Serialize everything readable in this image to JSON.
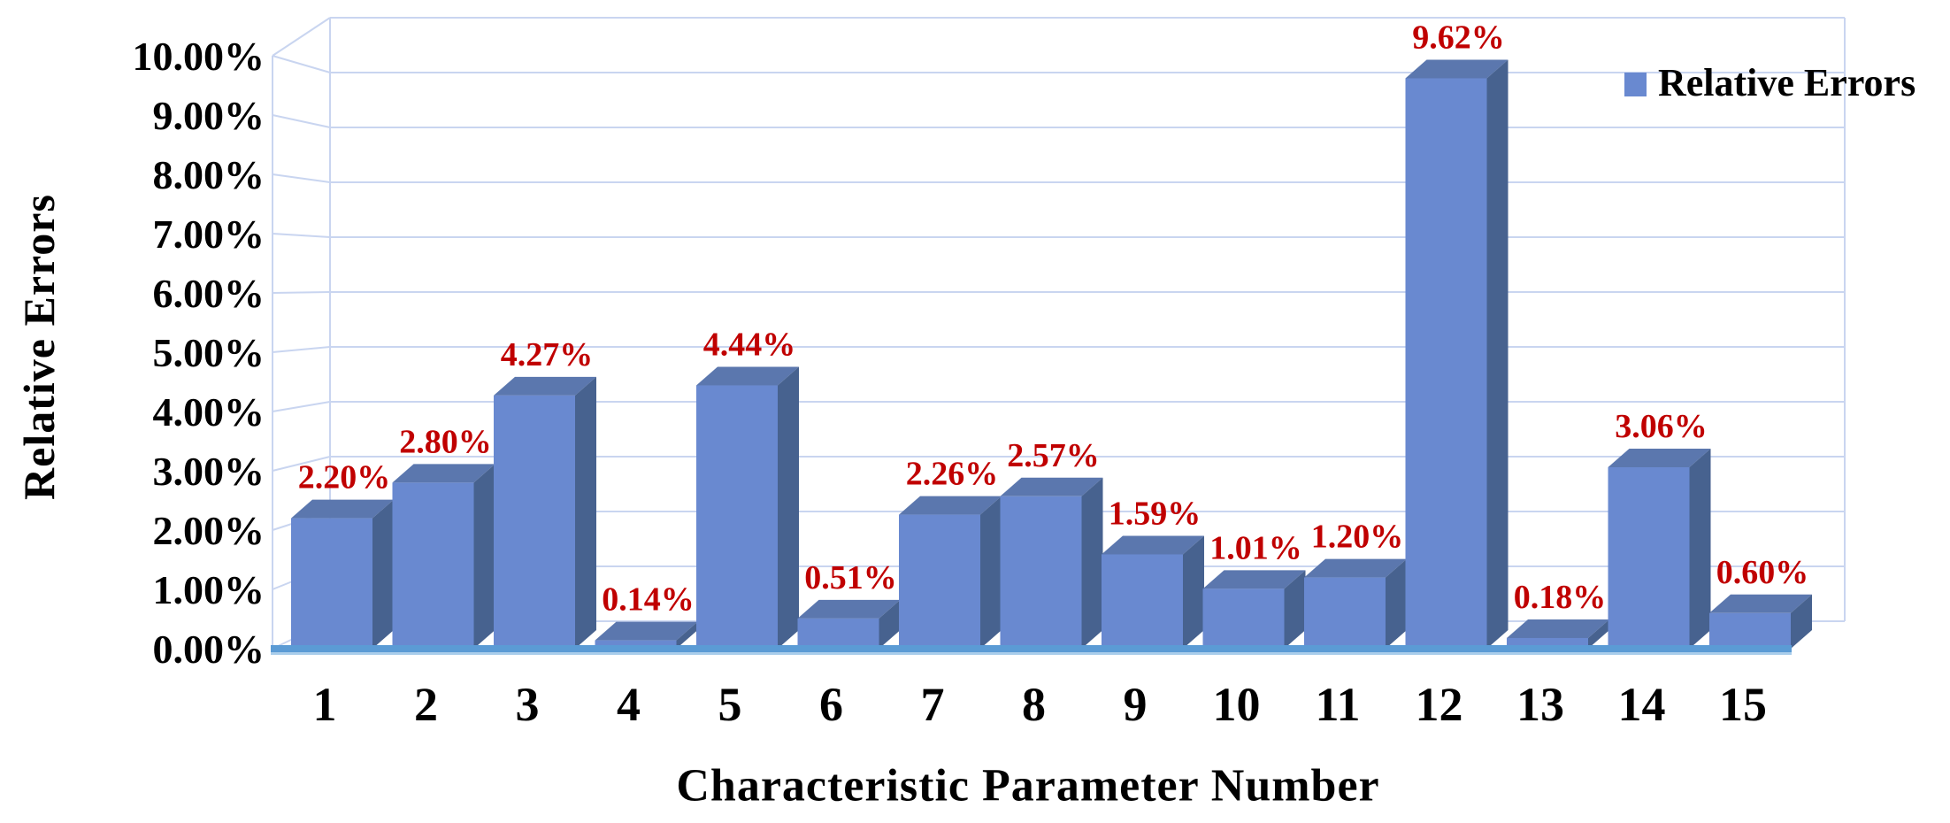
{
  "chart_data": {
    "type": "bar",
    "style": "3d-column",
    "title": "",
    "xlabel": "Characteristic Parameter Number",
    "ylabel": "Relative Errors",
    "legend": [
      "Relative Errors"
    ],
    "legend_position": "top-right",
    "categories": [
      "1",
      "2",
      "3",
      "4",
      "5",
      "6",
      "7",
      "8",
      "9",
      "10",
      "11",
      "12",
      "13",
      "14",
      "15"
    ],
    "values": [
      2.2,
      2.8,
      4.27,
      0.14,
      4.44,
      0.51,
      2.26,
      2.57,
      1.59,
      1.01,
      1.2,
      9.62,
      0.18,
      3.06,
      0.6
    ],
    "data_labels": [
      "2.20%",
      "2.80%",
      "4.27%",
      "0.14%",
      "4.44%",
      "0.51%",
      "2.26%",
      "2.57%",
      "1.59%",
      "1.01%",
      "1.20%",
      "9.62%",
      "0.18%",
      "3.06%",
      "0.60%"
    ],
    "ytick_labels": [
      "0.00%",
      "1.00%",
      "2.00%",
      "3.00%",
      "4.00%",
      "5.00%",
      "6.00%",
      "7.00%",
      "8.00%",
      "9.00%",
      "10.00%"
    ],
    "ylim": [
      0,
      10
    ],
    "grid": true,
    "colors": {
      "bar_front": "#6989d0",
      "bar_top": "#5b77ae",
      "bar_side": "#47628f",
      "data_label": "#c00000",
      "gridline": "#c9d5f0",
      "floor_line": "#5b9bd5",
      "floor_line_light": "#a9cdeb",
      "axis_text": "#000000"
    }
  }
}
